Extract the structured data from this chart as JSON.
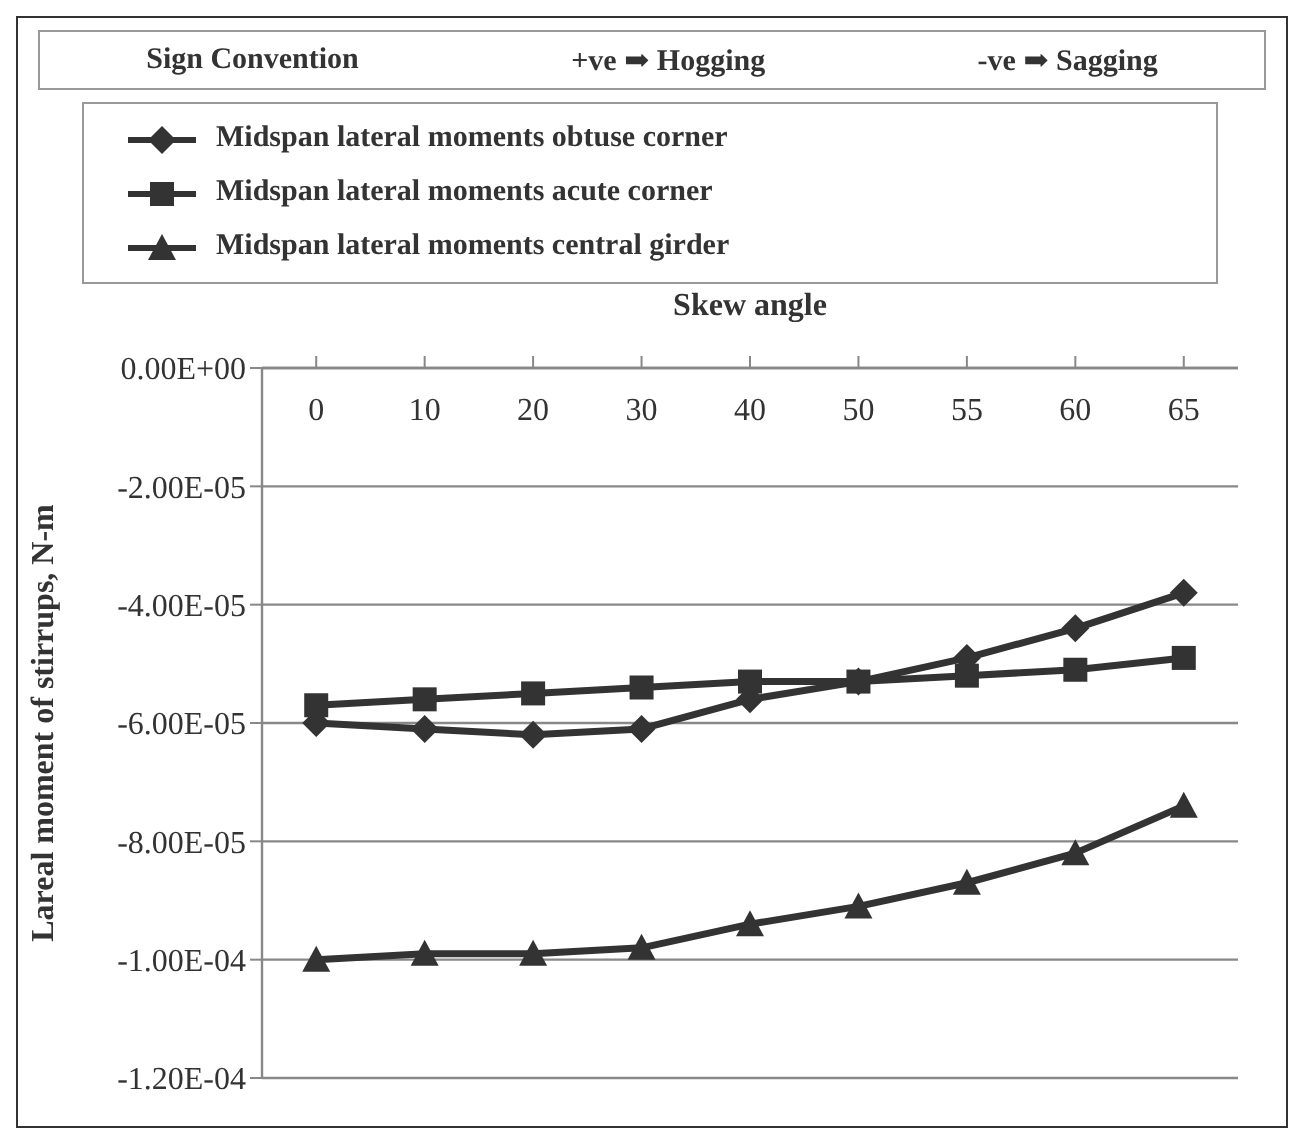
{
  "chart_data": {
    "type": "line",
    "xlabel": "Skew angle",
    "ylabel": "Lareal moment of stirrups, N-m",
    "annotations": [
      "Sign Convention",
      "+ve ➡ Hogging",
      "-ve ➡ Sagging"
    ],
    "categories": [
      "0",
      "10",
      "20",
      "30",
      "40",
      "50",
      "55",
      "60",
      "65"
    ],
    "series": [
      {
        "name": "Midspan lateral moments obtuse corner",
        "color": "#333333",
        "marker": "diamond",
        "values": [
          -6e-05,
          -6.1e-05,
          -6.2e-05,
          -6.1e-05,
          -5.6e-05,
          -5.3e-05,
          -4.9e-05,
          -4.4e-05,
          -3.8e-05
        ]
      },
      {
        "name": "Midspan lateral moments acute corner",
        "color": "#333333",
        "marker": "square",
        "values": [
          -5.7e-05,
          -5.6e-05,
          -5.5e-05,
          -5.4e-05,
          -5.3e-05,
          -5.3e-05,
          -5.2e-05,
          -5.1e-05,
          -4.9e-05
        ]
      },
      {
        "name": "Midspan lateral moments central girder",
        "color": "#333333",
        "marker": "triangle",
        "values": [
          -0.0001,
          -9.9e-05,
          -9.9e-05,
          -9.8e-05,
          -9.4e-05,
          -9.1e-05,
          -8.7e-05,
          -8.2e-05,
          -7.4e-05
        ]
      }
    ],
    "ylim": [
      -0.00012,
      0
    ],
    "yticks": [
      {
        "value": 0,
        "label": "0.00E+00"
      },
      {
        "value": -2e-05,
        "label": "-2.00E-05"
      },
      {
        "value": -4e-05,
        "label": "-4.00E-05"
      },
      {
        "value": -6e-05,
        "label": "-6.00E-05"
      },
      {
        "value": -8e-05,
        "label": "-8.00E-05"
      },
      {
        "value": -0.0001,
        "label": "-1.00E-04"
      },
      {
        "value": -0.00012,
        "label": "-1.20E-04"
      }
    ],
    "grid": "y",
    "legend": "top",
    "line_style": "solid"
  }
}
